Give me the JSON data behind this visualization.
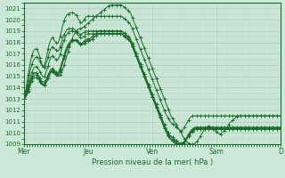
{
  "title": "Pression niveau de la mer( hPa )",
  "bg_color": "#cce8d8",
  "grid_color": "#aaccbb",
  "line_color": "#1a6b2a",
  "ylim": [
    1009,
    1021.5
  ],
  "yticks": [
    1009,
    1010,
    1011,
    1012,
    1013,
    1014,
    1015,
    1016,
    1017,
    1018,
    1019,
    1020,
    1021
  ],
  "xtick_labels": [
    "Mer",
    "Jeu",
    "Ven",
    "Sam",
    "D"
  ],
  "xtick_positions": [
    0,
    48,
    96,
    144,
    192
  ],
  "total_points": 193,
  "series": [
    [
      1013.0,
      1013.3,
      1013.6,
      1014.0,
      1014.4,
      1014.7,
      1015.0,
      1015.2,
      1015.3,
      1015.3,
      1015.2,
      1015.0,
      1014.8,
      1014.6,
      1014.5,
      1014.5,
      1014.6,
      1014.8,
      1015.0,
      1015.2,
      1015.4,
      1015.5,
      1015.5,
      1015.4,
      1015.2,
      1015.1,
      1015.0,
      1015.1,
      1015.3,
      1015.6,
      1016.0,
      1016.4,
      1016.8,
      1017.2,
      1017.6,
      1018.0,
      1018.3,
      1018.6,
      1018.8,
      1019.0,
      1019.1,
      1019.2,
      1019.2,
      1019.2,
      1019.3,
      1019.4,
      1019.5,
      1019.6,
      1019.7,
      1019.8,
      1019.9,
      1020.0,
      1020.1,
      1020.2,
      1020.3,
      1020.4,
      1020.5,
      1020.6,
      1020.7,
      1020.8,
      1020.9,
      1021.0,
      1021.1,
      1021.2,
      1021.25,
      1021.3,
      1021.3,
      1021.3,
      1021.3,
      1021.3,
      1021.3,
      1021.3,
      1021.3,
      1021.3,
      1021.2,
      1021.1,
      1021.0,
      1020.9,
      1020.8,
      1020.7,
      1020.5,
      1020.2,
      1019.9,
      1019.6,
      1019.3,
      1019.0,
      1018.7,
      1018.4,
      1018.1,
      1017.8,
      1017.5,
      1017.2,
      1016.9,
      1016.6,
      1016.3,
      1016.0,
      1015.7,
      1015.4,
      1015.1,
      1014.8,
      1014.5,
      1014.2,
      1013.9,
      1013.6,
      1013.3,
      1013.0,
      1012.7,
      1012.4,
      1012.1,
      1011.8,
      1011.5,
      1011.3,
      1011.1,
      1010.9,
      1010.7,
      1010.5,
      1010.3,
      1010.1,
      1009.9,
      1009.7,
      1009.5,
      1009.3,
      1009.2,
      1009.1,
      1009.0,
      1009.0,
      1009.0,
      1009.0,
      1009.1,
      1009.2,
      1009.3,
      1009.5,
      1009.7,
      1009.9,
      1010.1,
      1010.3,
      1010.4,
      1010.5,
      1010.6,
      1010.6,
      1010.5,
      1010.4,
      1010.3,
      1010.2,
      1010.1,
      1010.0,
      1009.9,
      1009.9,
      1010.0,
      1010.1,
      1010.2,
      1010.3,
      1010.5,
      1010.7,
      1010.9,
      1011.0,
      1011.1,
      1011.2,
      1011.3,
      1011.4,
      1011.5,
      1011.5,
      1011.5,
      1011.5,
      1011.5,
      1011.5,
      1011.5,
      1011.5,
      1011.5,
      1011.5,
      1011.5,
      1011.5,
      1011.5,
      1011.5,
      1011.5,
      1011.5,
      1011.5,
      1011.5,
      1011.5,
      1011.5,
      1011.5,
      1011.5,
      1011.5,
      1011.5,
      1011.5,
      1011.5,
      1011.5,
      1011.5,
      1011.5,
      1011.5,
      1011.5,
      1011.5,
      1011.5
    ],
    [
      1013.0,
      1013.5,
      1014.0,
      1014.6,
      1015.2,
      1015.7,
      1016.1,
      1016.4,
      1016.6,
      1016.7,
      1016.7,
      1016.5,
      1016.3,
      1016.0,
      1015.8,
      1015.8,
      1016.0,
      1016.3,
      1016.7,
      1017.1,
      1017.4,
      1017.6,
      1017.5,
      1017.4,
      1017.3,
      1017.2,
      1017.3,
      1017.6,
      1018.0,
      1018.4,
      1018.7,
      1018.9,
      1019.1,
      1019.2,
      1019.2,
      1019.2,
      1019.2,
      1019.2,
      1019.1,
      1019.0,
      1018.9,
      1018.8,
      1018.7,
      1018.7,
      1018.8,
      1018.9,
      1019.0,
      1019.0,
      1019.0,
      1019.0,
      1019.0,
      1019.0,
      1019.0,
      1019.0,
      1019.0,
      1019.0,
      1019.0,
      1019.0,
      1019.0,
      1019.0,
      1019.0,
      1019.0,
      1019.0,
      1019.0,
      1019.0,
      1019.0,
      1019.0,
      1019.0,
      1019.0,
      1019.0,
      1019.0,
      1019.0,
      1019.0,
      1019.0,
      1018.9,
      1018.8,
      1018.7,
      1018.6,
      1018.5,
      1018.4,
      1018.2,
      1017.9,
      1017.6,
      1017.3,
      1017.0,
      1016.7,
      1016.4,
      1016.1,
      1015.8,
      1015.5,
      1015.2,
      1014.9,
      1014.6,
      1014.3,
      1014.0,
      1013.7,
      1013.4,
      1013.1,
      1012.8,
      1012.5,
      1012.2,
      1011.9,
      1011.6,
      1011.3,
      1011.0,
      1010.7,
      1010.4,
      1010.2,
      1010.0,
      1009.8,
      1009.7,
      1009.6,
      1009.5,
      1009.4,
      1009.3,
      1009.2,
      1009.1,
      1009.0,
      1009.0,
      1009.0,
      1009.1,
      1009.3,
      1009.5,
      1009.7,
      1009.9,
      1010.0,
      1010.1,
      1010.2,
      1010.3,
      1010.3,
      1010.3,
      1010.3,
      1010.3,
      1010.3,
      1010.3,
      1010.3,
      1010.3,
      1010.3,
      1010.3,
      1010.3,
      1010.3,
      1010.3,
      1010.3,
      1010.3,
      1010.3,
      1010.3,
      1010.3,
      1010.3,
      1010.3,
      1010.3,
      1010.3,
      1010.3,
      1010.3,
      1010.3,
      1010.3,
      1010.3,
      1010.3,
      1010.3,
      1010.3,
      1010.3,
      1010.3,
      1010.3,
      1010.3,
      1010.3,
      1010.3,
      1010.3,
      1010.3,
      1010.3,
      1010.3,
      1010.3,
      1010.3,
      1010.3,
      1010.3,
      1010.3,
      1010.3,
      1010.3,
      1010.3,
      1010.3,
      1010.3,
      1010.3,
      1010.3,
      1010.3,
      1010.3,
      1010.3,
      1010.3,
      1010.3,
      1010.3,
      1010.3,
      1010.3,
      1010.3,
      1010.3,
      1010.3,
      1010.3
    ],
    [
      1013.0,
      1013.2,
      1013.5,
      1013.9,
      1014.3,
      1014.7,
      1015.0,
      1015.2,
      1015.3,
      1015.3,
      1015.2,
      1015.0,
      1014.8,
      1014.5,
      1014.3,
      1014.3,
      1014.5,
      1014.8,
      1015.1,
      1015.4,
      1015.6,
      1015.7,
      1015.6,
      1015.5,
      1015.4,
      1015.3,
      1015.4,
      1015.7,
      1016.1,
      1016.5,
      1016.9,
      1017.3,
      1017.6,
      1017.8,
      1018.0,
      1018.1,
      1018.2,
      1018.2,
      1018.2,
      1018.2,
      1018.1,
      1018.0,
      1017.9,
      1017.9,
      1018.0,
      1018.1,
      1018.2,
      1018.3,
      1018.3,
      1018.3,
      1018.4,
      1018.5,
      1018.6,
      1018.7,
      1018.8,
      1018.9,
      1019.0,
      1019.0,
      1019.0,
      1019.0,
      1019.0,
      1019.0,
      1019.0,
      1019.0,
      1019.0,
      1019.0,
      1019.0,
      1019.0,
      1019.0,
      1019.0,
      1019.0,
      1019.0,
      1019.0,
      1019.0,
      1018.9,
      1018.8,
      1018.7,
      1018.6,
      1018.5,
      1018.4,
      1018.2,
      1017.9,
      1017.6,
      1017.3,
      1017.0,
      1016.7,
      1016.4,
      1016.1,
      1015.8,
      1015.5,
      1015.2,
      1014.9,
      1014.6,
      1014.3,
      1014.0,
      1013.7,
      1013.4,
      1013.1,
      1012.8,
      1012.5,
      1012.2,
      1011.9,
      1011.6,
      1011.3,
      1011.0,
      1010.7,
      1010.4,
      1010.2,
      1010.0,
      1009.8,
      1009.7,
      1009.6,
      1009.5,
      1009.4,
      1009.3,
      1009.2,
      1009.1,
      1009.1,
      1009.1,
      1009.1,
      1009.2,
      1009.3,
      1009.5,
      1009.7,
      1009.9,
      1010.0,
      1010.1,
      1010.2,
      1010.3,
      1010.3,
      1010.3,
      1010.3,
      1010.3,
      1010.3,
      1010.3,
      1010.3,
      1010.3,
      1010.3,
      1010.3,
      1010.3,
      1010.3,
      1010.3,
      1010.3,
      1010.3,
      1010.3,
      1010.3,
      1010.3,
      1010.3,
      1010.3,
      1010.3,
      1010.3,
      1010.3,
      1010.3,
      1010.3,
      1010.3,
      1010.3,
      1010.3,
      1010.3,
      1010.3,
      1010.3,
      1010.3,
      1010.3,
      1010.3,
      1010.3,
      1010.3,
      1010.3,
      1010.3,
      1010.3,
      1010.3,
      1010.3,
      1010.3,
      1010.3,
      1010.3,
      1010.3,
      1010.3,
      1010.3,
      1010.3,
      1010.3,
      1010.3,
      1010.3,
      1010.3,
      1010.3,
      1010.3,
      1010.3,
      1010.3,
      1010.3,
      1010.3,
      1010.3,
      1010.3,
      1010.3,
      1010.3,
      1010.3,
      1010.3
    ],
    [
      1013.0,
      1013.1,
      1013.3,
      1013.6,
      1014.0,
      1014.3,
      1014.6,
      1014.8,
      1014.9,
      1014.9,
      1014.8,
      1014.7,
      1014.5,
      1014.3,
      1014.2,
      1014.2,
      1014.3,
      1014.5,
      1014.8,
      1015.1,
      1015.3,
      1015.4,
      1015.3,
      1015.2,
      1015.1,
      1015.0,
      1015.1,
      1015.4,
      1015.8,
      1016.2,
      1016.6,
      1017.0,
      1017.3,
      1017.6,
      1017.8,
      1018.0,
      1018.1,
      1018.2,
      1018.2,
      1018.2,
      1018.1,
      1018.0,
      1017.9,
      1017.8,
      1017.8,
      1017.9,
      1018.0,
      1018.1,
      1018.1,
      1018.1,
      1018.2,
      1018.3,
      1018.4,
      1018.5,
      1018.6,
      1018.7,
      1018.8,
      1018.8,
      1018.8,
      1018.8,
      1018.8,
      1018.8,
      1018.8,
      1018.8,
      1018.8,
      1018.8,
      1018.8,
      1018.8,
      1018.8,
      1018.8,
      1018.8,
      1018.8,
      1018.8,
      1018.8,
      1018.7,
      1018.6,
      1018.5,
      1018.4,
      1018.3,
      1018.2,
      1018.0,
      1017.7,
      1017.4,
      1017.1,
      1016.8,
      1016.5,
      1016.2,
      1015.9,
      1015.6,
      1015.3,
      1015.0,
      1014.7,
      1014.4,
      1014.1,
      1013.8,
      1013.5,
      1013.2,
      1012.9,
      1012.6,
      1012.3,
      1012.0,
      1011.7,
      1011.4,
      1011.1,
      1010.8,
      1010.5,
      1010.2,
      1010.0,
      1009.8,
      1009.6,
      1009.5,
      1009.4,
      1009.3,
      1009.2,
      1009.1,
      1009.0,
      1009.0,
      1009.0,
      1009.0,
      1009.1,
      1009.2,
      1009.3,
      1009.5,
      1009.7,
      1009.9,
      1010.1,
      1010.2,
      1010.3,
      1010.4,
      1010.4,
      1010.4,
      1010.4,
      1010.4,
      1010.4,
      1010.4,
      1010.4,
      1010.4,
      1010.4,
      1010.4,
      1010.4,
      1010.4,
      1010.4,
      1010.4,
      1010.4,
      1010.4,
      1010.4,
      1010.4,
      1010.4,
      1010.4,
      1010.4,
      1010.4,
      1010.4,
      1010.4,
      1010.4,
      1010.4,
      1010.4,
      1010.4,
      1010.4,
      1010.4,
      1010.4,
      1010.4,
      1010.4,
      1010.4,
      1010.4,
      1010.4,
      1010.4,
      1010.4,
      1010.4,
      1010.4,
      1010.4,
      1010.4,
      1010.4,
      1010.4,
      1010.4,
      1010.4,
      1010.4,
      1010.4,
      1010.4,
      1010.4,
      1010.4,
      1010.4,
      1010.4,
      1010.4,
      1010.4,
      1010.4,
      1010.4,
      1010.4,
      1010.4,
      1010.4,
      1010.4,
      1010.4,
      1010.4,
      1010.4
    ],
    [
      1013.0,
      1013.15,
      1013.4,
      1013.75,
      1014.15,
      1014.5,
      1014.8,
      1015.0,
      1015.1,
      1015.1,
      1015.0,
      1014.8,
      1014.6,
      1014.4,
      1014.25,
      1014.25,
      1014.4,
      1014.65,
      1014.95,
      1015.25,
      1015.45,
      1015.55,
      1015.45,
      1015.35,
      1015.25,
      1015.15,
      1015.25,
      1015.55,
      1015.95,
      1016.35,
      1016.75,
      1017.1,
      1017.4,
      1017.65,
      1017.85,
      1018.0,
      1018.1,
      1018.15,
      1018.15,
      1018.1,
      1018.0,
      1017.9,
      1017.8,
      1017.75,
      1017.85,
      1017.95,
      1018.05,
      1018.15,
      1018.15,
      1018.15,
      1018.2,
      1018.3,
      1018.4,
      1018.5,
      1018.6,
      1018.7,
      1018.75,
      1018.75,
      1018.75,
      1018.75,
      1018.75,
      1018.75,
      1018.75,
      1018.75,
      1018.75,
      1018.75,
      1018.75,
      1018.75,
      1018.75,
      1018.75,
      1018.75,
      1018.75,
      1018.75,
      1018.75,
      1018.65,
      1018.55,
      1018.45,
      1018.35,
      1018.25,
      1018.15,
      1017.95,
      1017.65,
      1017.35,
      1017.05,
      1016.75,
      1016.45,
      1016.15,
      1015.85,
      1015.55,
      1015.25,
      1014.95,
      1014.65,
      1014.35,
      1014.05,
      1013.75,
      1013.45,
      1013.15,
      1012.85,
      1012.55,
      1012.25,
      1011.95,
      1011.65,
      1011.35,
      1011.05,
      1010.75,
      1010.45,
      1010.15,
      1009.9,
      1009.7,
      1009.5,
      1009.4,
      1009.3,
      1009.2,
      1009.15,
      1009.05,
      1009.0,
      1009.0,
      1009.0,
      1009.0,
      1009.1,
      1009.2,
      1009.35,
      1009.55,
      1009.75,
      1009.95,
      1010.15,
      1010.25,
      1010.35,
      1010.45,
      1010.45,
      1010.45,
      1010.45,
      1010.45,
      1010.45,
      1010.45,
      1010.45,
      1010.45,
      1010.45,
      1010.45,
      1010.45,
      1010.45,
      1010.45,
      1010.45,
      1010.45,
      1010.45,
      1010.45,
      1010.45,
      1010.45,
      1010.45,
      1010.45,
      1010.45,
      1010.45,
      1010.45,
      1010.45,
      1010.45,
      1010.45,
      1010.45,
      1010.45,
      1010.45,
      1010.45,
      1010.45,
      1010.45,
      1010.45,
      1010.45,
      1010.45,
      1010.45,
      1010.45,
      1010.45,
      1010.45,
      1010.45,
      1010.45,
      1010.45,
      1010.45,
      1010.45,
      1010.45,
      1010.45,
      1010.45,
      1010.45,
      1010.45,
      1010.45,
      1010.45,
      1010.45,
      1010.45,
      1010.45,
      1010.45,
      1010.45,
      1010.45,
      1010.45,
      1010.45,
      1010.45,
      1010.45,
      1010.45,
      1010.45
    ],
    [
      1013.0,
      1013.35,
      1013.75,
      1014.2,
      1014.65,
      1015.05,
      1015.4,
      1015.65,
      1015.8,
      1015.85,
      1015.8,
      1015.6,
      1015.4,
      1015.15,
      1014.95,
      1014.95,
      1015.2,
      1015.55,
      1015.95,
      1016.35,
      1016.65,
      1016.8,
      1016.7,
      1016.6,
      1016.5,
      1016.45,
      1016.6,
      1016.95,
      1017.4,
      1017.85,
      1018.2,
      1018.5,
      1018.7,
      1018.85,
      1018.95,
      1019.0,
      1019.0,
      1019.0,
      1018.95,
      1018.85,
      1018.7,
      1018.55,
      1018.4,
      1018.35,
      1018.45,
      1018.55,
      1018.65,
      1018.75,
      1018.75,
      1018.75,
      1018.75,
      1018.75,
      1018.75,
      1018.75,
      1018.75,
      1018.75,
      1018.75,
      1018.75,
      1018.75,
      1018.75,
      1018.75,
      1018.75,
      1018.75,
      1018.75,
      1018.75,
      1018.75,
      1018.75,
      1018.75,
      1018.75,
      1018.75,
      1018.75,
      1018.75,
      1018.75,
      1018.75,
      1018.65,
      1018.55,
      1018.45,
      1018.35,
      1018.25,
      1018.15,
      1017.95,
      1017.65,
      1017.35,
      1017.05,
      1016.75,
      1016.45,
      1016.15,
      1015.85,
      1015.55,
      1015.25,
      1014.95,
      1014.65,
      1014.35,
      1014.05,
      1013.75,
      1013.45,
      1013.15,
      1012.85,
      1012.55,
      1012.25,
      1011.95,
      1011.65,
      1011.35,
      1011.05,
      1010.75,
      1010.45,
      1010.2,
      1009.95,
      1009.75,
      1009.55,
      1009.4,
      1009.3,
      1009.2,
      1009.1,
      1009.05,
      1009.0,
      1009.0,
      1009.0,
      1009.0,
      1009.1,
      1009.25,
      1009.45,
      1009.65,
      1009.85,
      1010.05,
      1010.2,
      1010.3,
      1010.4,
      1010.5,
      1010.5,
      1010.5,
      1010.5,
      1010.5,
      1010.5,
      1010.5,
      1010.5,
      1010.5,
      1010.5,
      1010.5,
      1010.5,
      1010.5,
      1010.5,
      1010.5,
      1010.5,
      1010.5,
      1010.5,
      1010.5,
      1010.5,
      1010.5,
      1010.5,
      1010.5,
      1010.5,
      1010.5,
      1010.5,
      1010.5,
      1010.5,
      1010.5,
      1010.5,
      1010.5,
      1010.5,
      1010.5,
      1010.5,
      1010.5,
      1010.5,
      1010.5,
      1010.5,
      1010.5,
      1010.5,
      1010.5,
      1010.5,
      1010.5,
      1010.5,
      1010.5,
      1010.5,
      1010.5,
      1010.5,
      1010.5,
      1010.5,
      1010.5,
      1010.5,
      1010.5,
      1010.5,
      1010.5,
      1010.5,
      1010.5,
      1010.5,
      1010.5,
      1010.5,
      1010.5,
      1010.5,
      1010.5,
      1010.5,
      1010.5
    ],
    [
      1013.0,
      1013.6,
      1014.3,
      1015.1,
      1015.8,
      1016.4,
      1016.9,
      1017.2,
      1017.4,
      1017.4,
      1017.3,
      1017.0,
      1016.6,
      1016.2,
      1015.9,
      1015.9,
      1016.3,
      1016.8,
      1017.4,
      1017.9,
      1018.2,
      1018.4,
      1018.3,
      1018.1,
      1018.0,
      1017.9,
      1018.1,
      1018.5,
      1019.0,
      1019.5,
      1019.9,
      1020.2,
      1020.4,
      1020.5,
      1020.6,
      1020.6,
      1020.6,
      1020.6,
      1020.5,
      1020.4,
      1020.2,
      1020.0,
      1019.8,
      1019.7,
      1019.8,
      1020.0,
      1020.2,
      1020.3,
      1020.3,
      1020.3,
      1020.3,
      1020.3,
      1020.3,
      1020.3,
      1020.3,
      1020.3,
      1020.3,
      1020.3,
      1020.3,
      1020.3,
      1020.3,
      1020.3,
      1020.3,
      1020.3,
      1020.3,
      1020.3,
      1020.3,
      1020.3,
      1020.3,
      1020.3,
      1020.3,
      1020.3,
      1020.3,
      1020.3,
      1020.2,
      1020.1,
      1020.0,
      1019.9,
      1019.8,
      1019.7,
      1019.5,
      1019.2,
      1018.9,
      1018.6,
      1018.3,
      1018.0,
      1017.7,
      1017.4,
      1017.1,
      1016.8,
      1016.5,
      1016.2,
      1015.9,
      1015.6,
      1015.3,
      1015.0,
      1014.7,
      1014.4,
      1014.1,
      1013.8,
      1013.5,
      1013.2,
      1012.9,
      1012.6,
      1012.3,
      1012.0,
      1011.7,
      1011.5,
      1011.3,
      1011.1,
      1010.9,
      1010.8,
      1010.7,
      1010.6,
      1010.5,
      1010.4,
      1010.3,
      1010.2,
      1010.2,
      1010.3,
      1010.5,
      1010.7,
      1010.9,
      1011.1,
      1011.3,
      1011.4,
      1011.5,
      1011.5,
      1011.5,
      1011.5,
      1011.5,
      1011.5,
      1011.5,
      1011.5,
      1011.5,
      1011.5,
      1011.5,
      1011.5,
      1011.5,
      1011.5,
      1011.5,
      1011.5,
      1011.5,
      1011.5,
      1011.5,
      1011.5,
      1011.5,
      1011.5,
      1011.5,
      1011.5,
      1011.5,
      1011.5,
      1011.5,
      1011.5,
      1011.5,
      1011.5,
      1011.5,
      1011.5,
      1011.5,
      1011.5,
      1011.5,
      1011.5,
      1011.5,
      1011.5,
      1011.5,
      1011.5,
      1011.5,
      1011.5,
      1011.5,
      1011.5,
      1011.5,
      1011.5,
      1011.5,
      1011.5,
      1011.5,
      1011.5,
      1011.5,
      1011.5,
      1011.5,
      1011.5,
      1011.5,
      1011.5,
      1011.5,
      1011.5,
      1011.5,
      1011.5,
      1011.5,
      1011.5,
      1011.5,
      1011.5,
      1011.5,
      1011.5,
      1011.5
    ]
  ]
}
